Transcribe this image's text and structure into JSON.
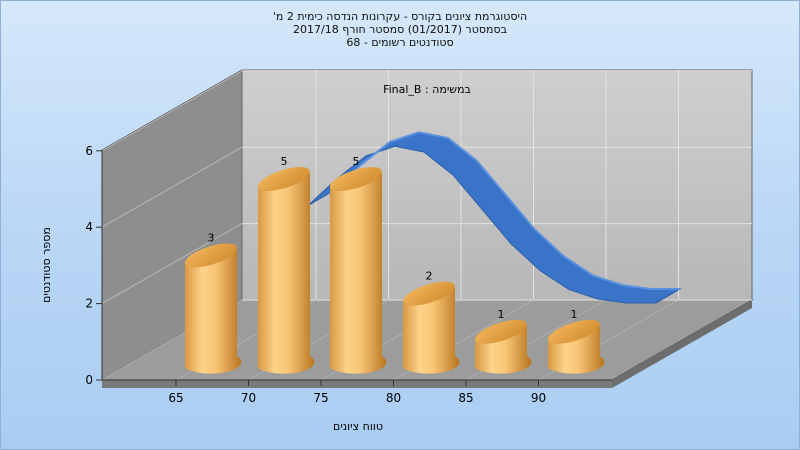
{
  "chart_data": {
    "type": "bar",
    "title_lines": [
      "היסטוגרמת ציונים בקורס - עקרונות הנדסה כימית 2 מ'",
      "בסמסטר  (01/2017)  סמסטר חורף  2017/18",
      "סטודנטים רשומים - 68"
    ],
    "annotation": "Final_B : במשימה",
    "xlabel": "טווח ציונים",
    "ylabel": "מספר סטודנטים",
    "x_ticks": [
      "65",
      "70",
      "75",
      "80",
      "85",
      "90"
    ],
    "y_ticks": [
      "0",
      "2",
      "4",
      "6"
    ],
    "ylim": [
      0,
      6
    ],
    "categories": [
      65,
      70,
      75,
      80,
      85,
      90
    ],
    "values": [
      3,
      5,
      5,
      2,
      1,
      1
    ],
    "value_labels": [
      "3",
      "5",
      "5",
      "2",
      "1",
      "1"
    ],
    "curve": {
      "x": [
        70,
        72,
        74,
        76,
        78,
        80,
        82,
        84,
        86,
        88,
        90,
        92,
        94
      ],
      "y": [
        5.3,
        6.0,
        6.6,
        6.85,
        6.7,
        6.1,
        5.2,
        4.3,
        3.6,
        3.1,
        2.85,
        2.75,
        2.75
      ]
    },
    "colors": {
      "bar_light": "#fcd38a",
      "bar_mid": "#efac4f",
      "bar_dark": "#c17d24",
      "curve": "#3a74c9",
      "back_wall": "#c4c4c4",
      "side_wall": "#8e8e8e",
      "floor": "#9c9c9c"
    },
    "grid": true
  }
}
